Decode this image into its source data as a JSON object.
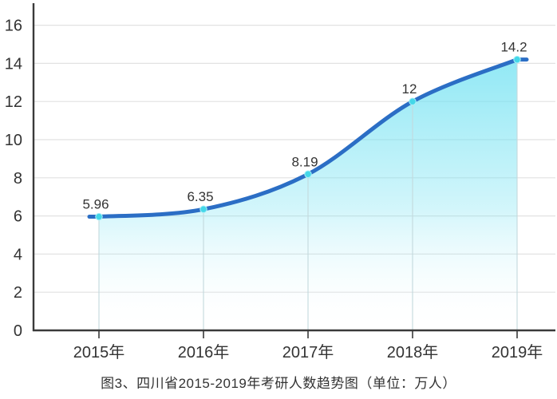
{
  "caption": "图3、四川省2015-2019年考研人数趋势图（单位：万人）",
  "chart_data": {
    "type": "area",
    "title": "图3、四川省2015-2019年考研人数趋势图（单位：万人）",
    "unit": "万人",
    "categories": [
      "2015年",
      "2016年",
      "2017年",
      "2018年",
      "2019年"
    ],
    "series": [
      {
        "name": "考研人数",
        "values": [
          5.96,
          6.35,
          8.19,
          12,
          14.2
        ]
      }
    ],
    "point_labels": [
      "5.96",
      "6.35",
      "8.19",
      "12",
      "14.2"
    ],
    "xlabel": "",
    "ylabel": "",
    "ylim": [
      0,
      17
    ],
    "yticks": [
      0,
      2,
      4,
      6,
      8,
      10,
      12,
      14,
      16
    ],
    "grid": "horizontal",
    "legend_position": "none",
    "line_smooth": true,
    "colors": {
      "line": "#2b6ec5",
      "marker": "#44d7e8",
      "marker_ring": "#a9f0f8",
      "area_top": "#73e2f2",
      "grid": "#e2e2e2",
      "dropline": "#c3d9dd",
      "axis": "#3a3a3a",
      "text": "#333333"
    }
  }
}
